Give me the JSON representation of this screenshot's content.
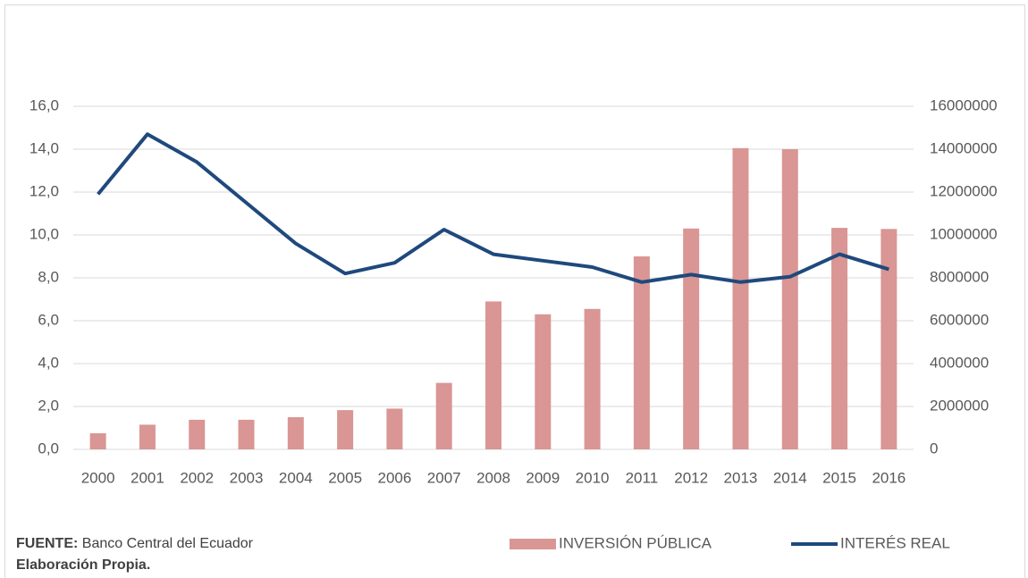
{
  "chart_data": {
    "type": "combo",
    "categories": [
      "2000",
      "2001",
      "2002",
      "2003",
      "2004",
      "2005",
      "2006",
      "2007",
      "2008",
      "2009",
      "2010",
      "2011",
      "2012",
      "2013",
      "2014",
      "2015",
      "2016"
    ],
    "series": [
      {
        "name": "INVERSIÓN PÚBLICA",
        "type": "bar",
        "axis": "y2",
        "color": "#d99694",
        "values": [
          750000,
          1150000,
          1380000,
          1380000,
          1500000,
          1830000,
          1900000,
          3100000,
          6900000,
          6300000,
          6550000,
          9000000,
          10300000,
          14050000,
          14000000,
          10330000,
          10280000
        ]
      },
      {
        "name": "INTERÉS REAL",
        "type": "line",
        "color": "#1f497d",
        "values": [
          11.9,
          14.7,
          13.4,
          11.5,
          9.6,
          8.2,
          8.7,
          10.25,
          9.1,
          8.8,
          8.5,
          7.8,
          8.15,
          7.8,
          8.05,
          9.1,
          8.4
        ]
      }
    ],
    "ylim": [
      0,
      16
    ],
    "yticks": [
      {
        "value": 0,
        "label": "0,0"
      },
      {
        "value": 2,
        "label": "2,0"
      },
      {
        "value": 4,
        "label": "4,0"
      },
      {
        "value": 6,
        "label": "6,0"
      },
      {
        "value": 8,
        "label": "8,0"
      },
      {
        "value": 10,
        "label": "10,0"
      },
      {
        "value": 12,
        "label": "12,0"
      },
      {
        "value": 14,
        "label": "14,0"
      },
      {
        "value": 16,
        "label": "16,0"
      }
    ],
    "y2lim": [
      0,
      16000000
    ],
    "y2ticks": [
      0,
      2000000,
      4000000,
      6000000,
      8000000,
      10000000,
      12000000,
      14000000,
      16000000
    ],
    "grid": true,
    "legend": "bottom-right",
    "source_label": "FUENTE:",
    "source_text": "Banco Central del Ecuador",
    "credit": "Elaboración Propia."
  }
}
